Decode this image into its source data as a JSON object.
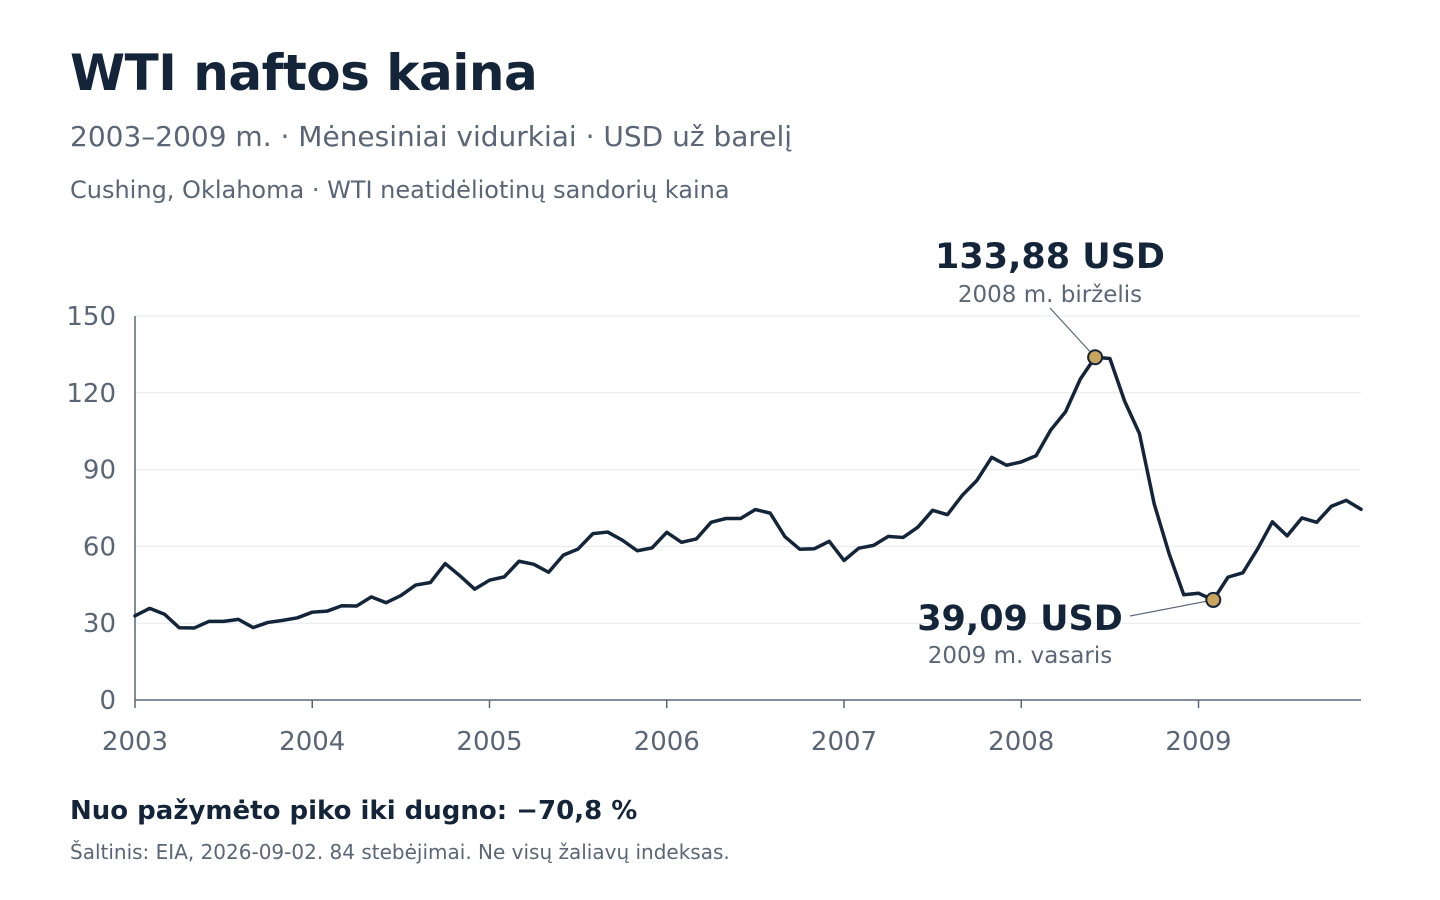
{
  "header": {
    "title": "WTI naftos kaina",
    "subtitle": "2003–2009 m. · Mėnesiniai vidurkiai · USD už barelį",
    "context": "Cushing, Oklahoma · WTI neatidėliotinų sandorių kaina"
  },
  "footer": {
    "summary": "Nuo pažymėto piko iki dugno: −70,8 %",
    "source": "Šaltinis: EIA, 2026-09-02. 84 stebėjimai. Ne visų žaliavų indeksas."
  },
  "colors": {
    "line": "#14253a",
    "marker_fill": "#c9a45c",
    "grid": "#e6e8ec",
    "axis": "#5a6676",
    "text_muted": "#5a6676"
  },
  "chart_data": {
    "type": "line",
    "x_start": "2003-01",
    "x_frequency": "monthly",
    "x_ticks": [
      "2003",
      "2004",
      "2005",
      "2006",
      "2007",
      "2008",
      "2009"
    ],
    "y_ticks": [
      "0",
      "30",
      "60",
      "90",
      "120",
      "150"
    ],
    "ylim": [
      0,
      150
    ],
    "grid": true,
    "legend": false,
    "series": [
      {
        "values": [
          32.9,
          35.8,
          33.5,
          28.2,
          28.1,
          30.7,
          30.7,
          31.5,
          28.3,
          30.3,
          31.1,
          32.1,
          34.3,
          34.7,
          36.8,
          36.7,
          40.3,
          38.0,
          40.8,
          44.9,
          45.9,
          53.3,
          48.5,
          43.3,
          46.8,
          48.1,
          54.2,
          53.0,
          49.9,
          56.6,
          59.0,
          65.0,
          65.6,
          62.4,
          58.3,
          59.4,
          65.5,
          61.6,
          62.9,
          69.4,
          70.9,
          70.9,
          74.4,
          73.0,
          63.8,
          58.9,
          59.1,
          62.0,
          54.5,
          59.3,
          60.4,
          63.9,
          63.5,
          67.5,
          74.1,
          72.4,
          79.9,
          85.8,
          94.8,
          91.7,
          93.0,
          95.4,
          105.5,
          112.6,
          125.4,
          133.88,
          133.4,
          116.7,
          104.1,
          76.6,
          57.3,
          41.1,
          41.7,
          39.09,
          48.0,
          49.7,
          59.0,
          69.6,
          64.1,
          71.1,
          69.4,
          75.7,
          78.0,
          74.5
        ]
      }
    ],
    "annotations": [
      {
        "label": "133,88 USD",
        "date": "2008 m. birželis",
        "index": 65,
        "value": 133.88
      },
      {
        "label": "39,09 USD",
        "date": "2009 m. vasaris",
        "index": 73,
        "value": 39.09
      }
    ]
  }
}
